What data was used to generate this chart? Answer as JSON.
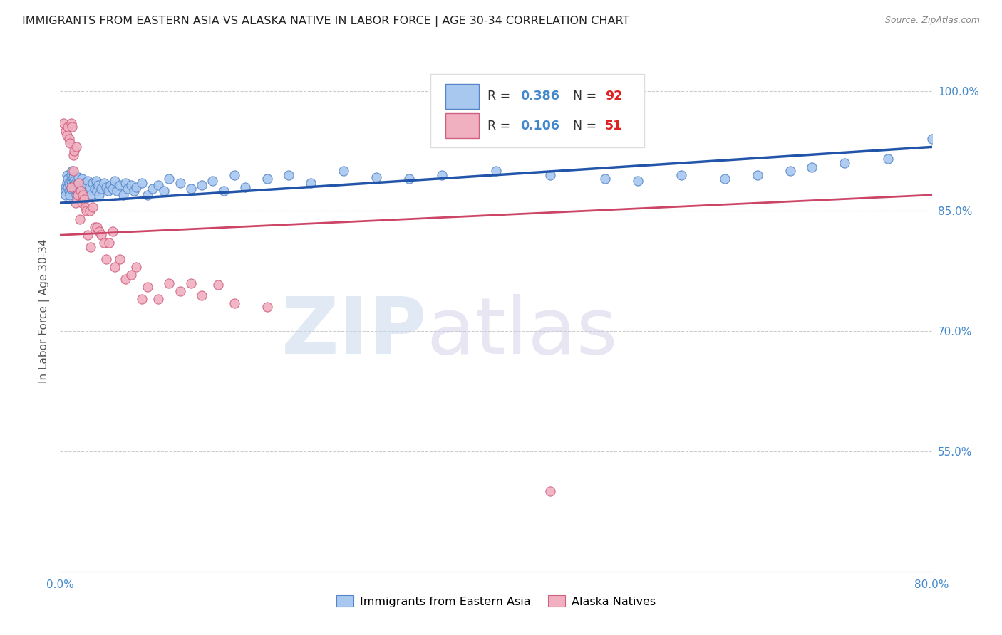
{
  "title": "IMMIGRANTS FROM EASTERN ASIA VS ALASKA NATIVE IN LABOR FORCE | AGE 30-34 CORRELATION CHART",
  "source": "Source: ZipAtlas.com",
  "ylabel": "In Labor Force | Age 30-34",
  "xlim": [
    0.0,
    0.8
  ],
  "ylim": [
    0.4,
    1.05
  ],
  "yticks": [
    0.55,
    0.7,
    0.85,
    1.0
  ],
  "ytick_labels": [
    "55.0%",
    "70.0%",
    "85.0%",
    "100.0%"
  ],
  "xticks": [
    0.0,
    0.1,
    0.2,
    0.3,
    0.4,
    0.5,
    0.6,
    0.7,
    0.8
  ],
  "xtick_labels": [
    "0.0%",
    "",
    "",
    "",
    "",
    "",
    "",
    "",
    "80.0%"
  ],
  "blue_color": "#A8C8F0",
  "blue_edge_color": "#5585C8",
  "pink_color": "#F0B0C0",
  "pink_edge_color": "#D06080",
  "blue_line_color": "#2255AA",
  "pink_line_color": "#CC4466",
  "axis_color": "#4488CC",
  "grid_color": "#CCCCCC",
  "watermark_zip": "ZIP",
  "watermark_atlas": "atlas",
  "blue_scatter_x": [
    0.005,
    0.005,
    0.005,
    0.006,
    0.006,
    0.007,
    0.007,
    0.008,
    0.008,
    0.009,
    0.01,
    0.01,
    0.01,
    0.011,
    0.011,
    0.012,
    0.012,
    0.013,
    0.013,
    0.014,
    0.015,
    0.015,
    0.016,
    0.016,
    0.017,
    0.018,
    0.018,
    0.019,
    0.02,
    0.02,
    0.021,
    0.022,
    0.022,
    0.023,
    0.024,
    0.025,
    0.026,
    0.027,
    0.028,
    0.03,
    0.032,
    0.033,
    0.034,
    0.035,
    0.036,
    0.038,
    0.04,
    0.042,
    0.044,
    0.046,
    0.048,
    0.05,
    0.052,
    0.055,
    0.058,
    0.06,
    0.062,
    0.065,
    0.068,
    0.07,
    0.075,
    0.08,
    0.085,
    0.09,
    0.095,
    0.1,
    0.11,
    0.12,
    0.13,
    0.14,
    0.15,
    0.16,
    0.17,
    0.19,
    0.21,
    0.23,
    0.26,
    0.29,
    0.32,
    0.35,
    0.4,
    0.45,
    0.5,
    0.53,
    0.57,
    0.61,
    0.64,
    0.67,
    0.69,
    0.72,
    0.76,
    0.8
  ],
  "blue_scatter_y": [
    0.88,
    0.875,
    0.87,
    0.895,
    0.885,
    0.89,
    0.88,
    0.885,
    0.875,
    0.87,
    0.895,
    0.888,
    0.878,
    0.9,
    0.885,
    0.892,
    0.882,
    0.888,
    0.878,
    0.885,
    0.88,
    0.87,
    0.885,
    0.875,
    0.892,
    0.88,
    0.87,
    0.875,
    0.89,
    0.875,
    0.88,
    0.885,
    0.872,
    0.878,
    0.882,
    0.888,
    0.875,
    0.88,
    0.87,
    0.885,
    0.878,
    0.888,
    0.875,
    0.882,
    0.87,
    0.878,
    0.885,
    0.88,
    0.875,
    0.882,
    0.878,
    0.888,
    0.875,
    0.882,
    0.87,
    0.885,
    0.878,
    0.882,
    0.875,
    0.88,
    0.885,
    0.87,
    0.878,
    0.882,
    0.875,
    0.89,
    0.885,
    0.878,
    0.882,
    0.888,
    0.875,
    0.895,
    0.88,
    0.89,
    0.895,
    0.885,
    0.9,
    0.892,
    0.89,
    0.895,
    0.9,
    0.895,
    0.89,
    0.888,
    0.895,
    0.89,
    0.895,
    0.9,
    0.905,
    0.91,
    0.915,
    0.94
  ],
  "pink_scatter_x": [
    0.003,
    0.005,
    0.006,
    0.007,
    0.008,
    0.009,
    0.01,
    0.01,
    0.011,
    0.012,
    0.012,
    0.013,
    0.014,
    0.015,
    0.016,
    0.017,
    0.018,
    0.019,
    0.02,
    0.021,
    0.022,
    0.023,
    0.024,
    0.025,
    0.027,
    0.028,
    0.03,
    0.032,
    0.034,
    0.036,
    0.038,
    0.04,
    0.042,
    0.045,
    0.048,
    0.05,
    0.055,
    0.06,
    0.065,
    0.07,
    0.075,
    0.08,
    0.09,
    0.1,
    0.11,
    0.12,
    0.13,
    0.145,
    0.16,
    0.19,
    0.45
  ],
  "pink_scatter_y": [
    0.96,
    0.95,
    0.945,
    0.955,
    0.94,
    0.935,
    0.96,
    0.88,
    0.955,
    0.92,
    0.9,
    0.925,
    0.86,
    0.93,
    0.87,
    0.885,
    0.84,
    0.875,
    0.86,
    0.87,
    0.865,
    0.855,
    0.85,
    0.82,
    0.85,
    0.805,
    0.855,
    0.83,
    0.83,
    0.825,
    0.82,
    0.81,
    0.79,
    0.81,
    0.825,
    0.78,
    0.79,
    0.765,
    0.77,
    0.78,
    0.74,
    0.755,
    0.74,
    0.76,
    0.75,
    0.76,
    0.745,
    0.758,
    0.735,
    0.73,
    0.5
  ],
  "blue_trend_x": [
    0.0,
    0.8
  ],
  "blue_trend_y": [
    0.86,
    0.93
  ],
  "pink_trend_x": [
    0.0,
    0.8
  ],
  "pink_trend_y": [
    0.82,
    0.87
  ]
}
